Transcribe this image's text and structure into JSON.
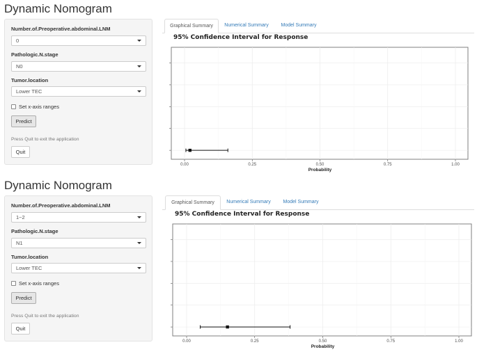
{
  "apps": [
    {
      "title": "Dynamic Nomogram",
      "fields": [
        {
          "label": "Number.of.Preoperative.abdominal.LNM",
          "value": "0"
        },
        {
          "label": "Pathologic.N.stage",
          "value": "N0"
        },
        {
          "label": "Tumor.location",
          "value": "Lower TEC"
        }
      ],
      "checkbox_label": "Set x-axis ranges",
      "predict_label": "Predict",
      "help_text": "Press Quit to exit the application",
      "quit_label": "Quit",
      "tabs": [
        {
          "label": "Graphical Summary",
          "active": true
        },
        {
          "label": "Numerical Summary",
          "active": false
        },
        {
          "label": "Model Summary",
          "active": false
        }
      ],
      "chart_data": {
        "type": "scatter",
        "title": "95% Confidence Interval for Response",
        "xlabel": "Probability",
        "ylabel": "",
        "xlim": [
          0,
          1
        ],
        "x_ticks": [
          "0.00",
          "0.25",
          "0.50",
          "0.75",
          "1.00"
        ],
        "grid": true,
        "points": [
          {
            "estimate": 0.02,
            "lower": 0.005,
            "upper": 0.16
          }
        ]
      }
    },
    {
      "title": "Dynamic Nomogram",
      "fields": [
        {
          "label": "Number.of.Preoperative.abdominal.LNM",
          "value": "1~2"
        },
        {
          "label": "Pathologic.N.stage",
          "value": "N1"
        },
        {
          "label": "Tumor.location",
          "value": "Lower TEC"
        }
      ],
      "checkbox_label": "Set x-axis ranges",
      "predict_label": "Predict",
      "help_text": "Press Quit to exit the application",
      "quit_label": "Quit",
      "tabs": [
        {
          "label": "Graphical Summary",
          "active": true
        },
        {
          "label": "Numerical Summary",
          "active": false
        },
        {
          "label": "Model Summary",
          "active": false
        }
      ],
      "chart_data": {
        "type": "scatter",
        "title": "95% Confidence Interval for Response",
        "xlabel": "Probability",
        "ylabel": "",
        "xlim": [
          0,
          1
        ],
        "x_ticks": [
          "0.00",
          "0.25",
          "0.50",
          "0.75",
          "1.00"
        ],
        "grid": true,
        "points": [
          {
            "estimate": 0.15,
            "lower": 0.05,
            "upper": 0.38
          }
        ]
      }
    }
  ]
}
